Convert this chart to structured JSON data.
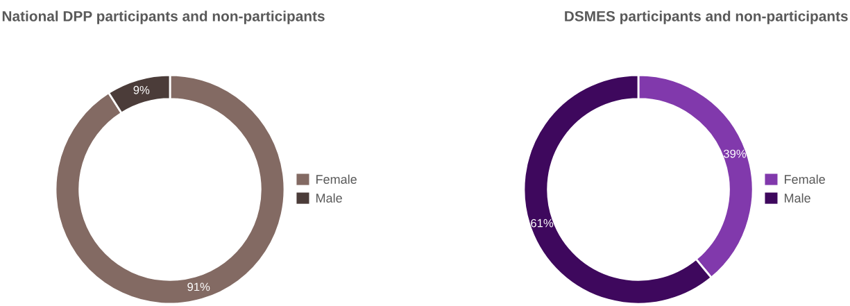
{
  "chart_data": [
    {
      "type": "donut",
      "title": "National DPP participants and non-participants",
      "categories": [
        "Female",
        "Male"
      ],
      "values": [
        91,
        9
      ],
      "colors": [
        "#836a63",
        "#4b3c39"
      ],
      "value_labels": [
        "91%",
        "9%"
      ],
      "legend": "right"
    },
    {
      "type": "donut",
      "title": "DSMES participants and non-participants",
      "categories": [
        "Female",
        "Male"
      ],
      "values": [
        39,
        61
      ],
      "colors": [
        "#8139ac",
        "#3e085d"
      ],
      "value_labels": [
        "39%",
        "61%"
      ],
      "legend": "right"
    }
  ]
}
